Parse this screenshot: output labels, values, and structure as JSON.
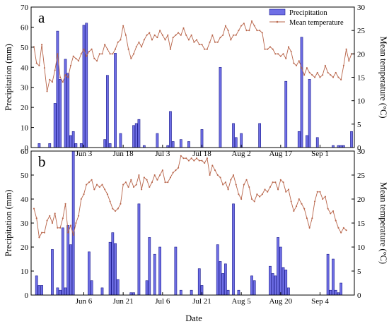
{
  "figure": {
    "xlabel": "Date",
    "colors": {
      "bar_fill": "#6f6fe6",
      "bar_stroke": "#1c1c8c",
      "line": "#b8654a",
      "axis": "#000000"
    }
  },
  "chart_data": [
    {
      "type": "bar+line",
      "panel_label": "a",
      "ylabel_left": "Precipitation (mm)",
      "ylabel_right": "Mean temperature (°C)",
      "legend": {
        "position": "top-right",
        "entries": [
          "Precipitation",
          "Mean temperature"
        ]
      },
      "x_tick_labels": [
        "Jun 3",
        "Jun 18",
        "Jul 3",
        "Jul 18",
        "Aug 2",
        "Aug 17",
        "Sep 1"
      ],
      "x_tick_days": [
        19,
        34,
        49,
        64,
        79,
        94,
        109
      ],
      "day_range": [
        0,
        121
      ],
      "ylim_left": [
        0,
        70
      ],
      "yticks_left": [
        0,
        10,
        20,
        30,
        40,
        50,
        60,
        70
      ],
      "ylim_right": [
        0,
        30
      ],
      "yticks_right": [
        0,
        5,
        10,
        15,
        20,
        25,
        30
      ],
      "precipitation": [
        [
          2,
          2
        ],
        [
          6,
          2
        ],
        [
          8,
          22
        ],
        [
          9,
          58
        ],
        [
          10,
          34
        ],
        [
          12,
          44
        ],
        [
          13,
          37
        ],
        [
          14,
          6
        ],
        [
          15,
          8
        ],
        [
          16,
          2
        ],
        [
          18,
          2
        ],
        [
          19,
          61
        ],
        [
          20,
          62
        ],
        [
          27,
          4
        ],
        [
          28,
          36
        ],
        [
          29,
          2
        ],
        [
          31,
          47
        ],
        [
          33,
          7
        ],
        [
          38,
          11
        ],
        [
          39,
          12
        ],
        [
          40,
          14
        ],
        [
          42,
          1
        ],
        [
          47,
          7
        ],
        [
          51,
          1
        ],
        [
          52,
          18
        ],
        [
          53,
          3
        ],
        [
          56,
          4
        ],
        [
          59,
          3
        ],
        [
          64,
          9
        ],
        [
          71,
          40
        ],
        [
          76,
          12
        ],
        [
          77,
          5
        ],
        [
          79,
          7
        ],
        [
          86,
          12
        ],
        [
          96,
          33
        ],
        [
          101,
          8
        ],
        [
          102,
          55
        ],
        [
          104,
          6
        ],
        [
          105,
          34
        ],
        [
          108,
          5
        ],
        [
          114,
          1
        ],
        [
          116,
          1
        ],
        [
          117,
          1
        ],
        [
          118,
          1
        ],
        [
          121,
          8
        ]
      ],
      "mean_temperature": [
        [
          0,
          21.5
        ],
        [
          1,
          18
        ],
        [
          2,
          17.5
        ],
        [
          3,
          22
        ],
        [
          4,
          17
        ],
        [
          5,
          12
        ],
        [
          6,
          14.5
        ],
        [
          7,
          14
        ],
        [
          8,
          16.5
        ],
        [
          9,
          20
        ],
        [
          10,
          15
        ],
        [
          11,
          14
        ],
        [
          12,
          15.5
        ],
        [
          13,
          15
        ],
        [
          14,
          17.5
        ],
        [
          15,
          19.5
        ],
        [
          16,
          19
        ],
        [
          17,
          18.5
        ],
        [
          18,
          20
        ],
        [
          19,
          21
        ],
        [
          20,
          19.5
        ],
        [
          21,
          20.5
        ],
        [
          22,
          21
        ],
        [
          23,
          19
        ],
        [
          24,
          18.5
        ],
        [
          25,
          20
        ],
        [
          26,
          20
        ],
        [
          27,
          22
        ],
        [
          28,
          21
        ],
        [
          29,
          20
        ],
        [
          30,
          20
        ],
        [
          31,
          21
        ],
        [
          32,
          22.5
        ],
        [
          33,
          23
        ],
        [
          34,
          26
        ],
        [
          35,
          24
        ],
        [
          36,
          21
        ],
        [
          37,
          19
        ],
        [
          38,
          20
        ],
        [
          39,
          21.5
        ],
        [
          40,
          22.5
        ],
        [
          41,
          21.5
        ],
        [
          42,
          23
        ],
        [
          43,
          24
        ],
        [
          44,
          24.5
        ],
        [
          45,
          23
        ],
        [
          46,
          24
        ],
        [
          47,
          23.5
        ],
        [
          48,
          25
        ],
        [
          49,
          24
        ],
        [
          50,
          23
        ],
        [
          51,
          24
        ],
        [
          52,
          21
        ],
        [
          53,
          23.5
        ],
        [
          54,
          24
        ],
        [
          55,
          24.5
        ],
        [
          56,
          24
        ],
        [
          57,
          25.5
        ],
        [
          58,
          24
        ],
        [
          59,
          23
        ],
        [
          60,
          24
        ],
        [
          61,
          22.5
        ],
        [
          62,
          23
        ],
        [
          63,
          22
        ],
        [
          64,
          22
        ],
        [
          65,
          21
        ],
        [
          66,
          21
        ],
        [
          67,
          22.5
        ],
        [
          68,
          24
        ],
        [
          69,
          22.5
        ],
        [
          70,
          22.5
        ],
        [
          71,
          23.5
        ],
        [
          72,
          24
        ],
        [
          73,
          26
        ],
        [
          74,
          25
        ],
        [
          75,
          23
        ],
        [
          76,
          24
        ],
        [
          77,
          24
        ],
        [
          78,
          25
        ],
        [
          79,
          26
        ],
        [
          80,
          26.5
        ],
        [
          81,
          25
        ],
        [
          82,
          25
        ],
        [
          83,
          27
        ],
        [
          84,
          26
        ],
        [
          85,
          25
        ],
        [
          86,
          25
        ],
        [
          87,
          24.5
        ],
        [
          88,
          21
        ],
        [
          89,
          21
        ],
        [
          90,
          21.5
        ],
        [
          91,
          21
        ],
        [
          92,
          20
        ],
        [
          93,
          20
        ],
        [
          94,
          19.5
        ],
        [
          95,
          20
        ],
        [
          96,
          19
        ],
        [
          97,
          21.5
        ],
        [
          98,
          20.5
        ],
        [
          99,
          18
        ],
        [
          100,
          17.5
        ],
        [
          101,
          18.5
        ],
        [
          102,
          17
        ],
        [
          103,
          15.5
        ],
        [
          104,
          17
        ],
        [
          105,
          16
        ],
        [
          106,
          15.5
        ],
        [
          107,
          15
        ],
        [
          108,
          16
        ],
        [
          109,
          15
        ],
        [
          110,
          15.5
        ],
        [
          111,
          17.5
        ],
        [
          112,
          16
        ],
        [
          113,
          15.5
        ],
        [
          114,
          15
        ],
        [
          115,
          16
        ],
        [
          116,
          15
        ],
        [
          117,
          14.5
        ],
        [
          118,
          17.5
        ],
        [
          119,
          21
        ],
        [
          120,
          18.5
        ],
        [
          121,
          20
        ],
        [
          122,
          20
        ]
      ]
    },
    {
      "type": "bar+line",
      "panel_label": "b",
      "ylabel_left": "Precipitation (mm)",
      "ylabel_right": "Mean temperature (°C)",
      "x_tick_labels": [
        "Jun 6",
        "Jun 21",
        "Jul 6",
        "Jul 21",
        "Aug 5",
        "Aug 20",
        "Sep 4"
      ],
      "x_tick_days": [
        19,
        34,
        49,
        64,
        79,
        94,
        109
      ],
      "day_range": [
        0,
        121
      ],
      "ylim_left": [
        0,
        60
      ],
      "yticks_left": [
        0,
        10,
        20,
        30,
        40,
        50,
        60
      ],
      "ylim_right": [
        0,
        30
      ],
      "yticks_right": [
        0,
        5,
        10,
        15,
        20,
        25,
        30
      ],
      "precipitation": [
        [
          1,
          8
        ],
        [
          2,
          4
        ],
        [
          3,
          4
        ],
        [
          7,
          19
        ],
        [
          9,
          3
        ],
        [
          10,
          2
        ],
        [
          11,
          28
        ],
        [
          12,
          3
        ],
        [
          13,
          29
        ],
        [
          14,
          21
        ],
        [
          15,
          60
        ],
        [
          21,
          18
        ],
        [
          22,
          6
        ],
        [
          26,
          3
        ],
        [
          29,
          22
        ],
        [
          30,
          26
        ],
        [
          31,
          21.5
        ],
        [
          32,
          6.5
        ],
        [
          37,
          1
        ],
        [
          38,
          1
        ],
        [
          40,
          38
        ],
        [
          43,
          6
        ],
        [
          44,
          24
        ],
        [
          46,
          17
        ],
        [
          48,
          20
        ],
        [
          54,
          20
        ],
        [
          56,
          2
        ],
        [
          60,
          2
        ],
        [
          63,
          11
        ],
        [
          64,
          4
        ],
        [
          70,
          21
        ],
        [
          71,
          14
        ],
        [
          72,
          9
        ],
        [
          73,
          13
        ],
        [
          74,
          2
        ],
        [
          76,
          38
        ],
        [
          78,
          2
        ],
        [
          83,
          8
        ],
        [
          84,
          6
        ],
        [
          90,
          12
        ],
        [
          91,
          9
        ],
        [
          92,
          8
        ],
        [
          93,
          24
        ],
        [
          94,
          20
        ],
        [
          95,
          11.5
        ],
        [
          96,
          10.5
        ],
        [
          97,
          3
        ],
        [
          112,
          17
        ],
        [
          113,
          2
        ],
        [
          114,
          15
        ],
        [
          115,
          2
        ],
        [
          116,
          1
        ],
        [
          117,
          5
        ]
      ],
      "mean_temperature": [
        [
          0,
          18
        ],
        [
          1,
          16
        ],
        [
          2,
          12
        ],
        [
          3,
          13
        ],
        [
          4,
          13
        ],
        [
          5,
          15.5
        ],
        [
          6,
          16.5
        ],
        [
          7,
          15
        ],
        [
          8,
          17
        ],
        [
          9,
          14
        ],
        [
          10,
          14
        ],
        [
          11,
          16
        ],
        [
          12,
          19
        ],
        [
          13,
          13
        ],
        [
          14,
          14.5
        ],
        [
          15,
          12.5
        ],
        [
          16,
          15
        ],
        [
          17,
          16.5
        ],
        [
          18,
          20
        ],
        [
          19,
          21
        ],
        [
          20,
          23
        ],
        [
          21,
          23.5
        ],
        [
          22,
          24
        ],
        [
          23,
          22
        ],
        [
          24,
          23
        ],
        [
          25,
          22.5
        ],
        [
          26,
          23
        ],
        [
          27,
          22
        ],
        [
          28,
          21
        ],
        [
          29,
          19.5
        ],
        [
          30,
          18
        ],
        [
          31,
          17.5
        ],
        [
          32,
          18
        ],
        [
          33,
          19
        ],
        [
          34,
          23
        ],
        [
          35,
          23.5
        ],
        [
          36,
          22.5
        ],
        [
          37,
          24
        ],
        [
          38,
          22.5
        ],
        [
          39,
          23
        ],
        [
          40,
          25
        ],
        [
          41,
          22
        ],
        [
          42,
          24.5
        ],
        [
          43,
          24
        ],
        [
          44,
          22.5
        ],
        [
          45,
          23.5
        ],
        [
          46,
          25
        ],
        [
          47,
          24
        ],
        [
          48,
          25
        ],
        [
          49,
          26
        ],
        [
          50,
          23.5
        ],
        [
          51,
          23.5
        ],
        [
          52,
          24.5
        ],
        [
          53,
          25.5
        ],
        [
          54,
          26
        ],
        [
          55,
          26.5
        ],
        [
          56,
          29
        ],
        [
          57,
          28.5
        ],
        [
          58,
          28.5
        ],
        [
          59,
          28
        ],
        [
          60,
          28.5
        ],
        [
          61,
          28
        ],
        [
          62,
          28.5
        ],
        [
          63,
          28
        ],
        [
          64,
          28
        ],
        [
          65,
          27.5
        ],
        [
          66,
          28.5
        ],
        [
          67,
          25
        ],
        [
          68,
          27
        ],
        [
          69,
          26
        ],
        [
          70,
          25
        ],
        [
          71,
          24.5
        ],
        [
          72,
          23
        ],
        [
          73,
          23.5
        ],
        [
          74,
          22
        ],
        [
          75,
          24
        ],
        [
          76,
          25
        ],
        [
          77,
          23
        ],
        [
          78,
          21
        ],
        [
          79,
          20
        ],
        [
          80,
          23
        ],
        [
          81,
          24
        ],
        [
          82,
          22.5
        ],
        [
          83,
          20
        ],
        [
          84,
          19.5
        ],
        [
          85,
          21
        ],
        [
          86,
          20.5
        ],
        [
          87,
          21
        ],
        [
          88,
          22
        ],
        [
          89,
          21.5
        ],
        [
          90,
          22.5
        ],
        [
          91,
          23.5
        ],
        [
          92,
          23.5
        ],
        [
          93,
          22
        ],
        [
          94,
          24
        ],
        [
          95,
          23.5
        ],
        [
          96,
          21.5
        ],
        [
          97,
          22
        ],
        [
          98,
          19.5
        ],
        [
          99,
          17.5
        ],
        [
          100,
          18.5
        ],
        [
          101,
          20
        ],
        [
          102,
          19
        ],
        [
          103,
          18
        ],
        [
          104,
          16
        ],
        [
          105,
          14
        ],
        [
          106,
          16
        ],
        [
          107,
          19.5
        ],
        [
          108,
          21.5
        ],
        [
          109,
          21.5
        ],
        [
          110,
          20
        ],
        [
          111,
          20.5
        ],
        [
          112,
          18
        ],
        [
          113,
          17
        ],
        [
          114,
          17.5
        ],
        [
          115,
          15.5
        ],
        [
          116,
          14
        ],
        [
          117,
          13
        ],
        [
          118,
          14
        ],
        [
          119,
          13.5
        ]
      ]
    }
  ]
}
